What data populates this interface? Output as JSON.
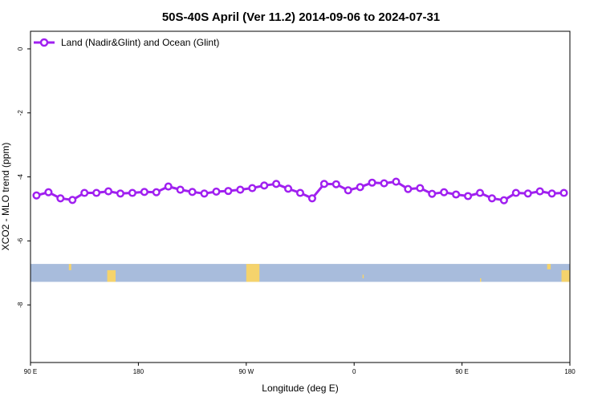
{
  "chart_data": {
    "type": "line",
    "title": "50S-40S April (Ver 11.2)   2014-09-06 to 2024-07-31",
    "xlabel": "Longitude (deg E)",
    "ylabel": "XCO2 - MLO trend (ppm)",
    "x_ticks": [
      {
        "value": 90,
        "label": "90 E"
      },
      {
        "value": 180,
        "label": "180"
      },
      {
        "value": 270,
        "label": "90 W"
      },
      {
        "value": 360,
        "label": "0"
      },
      {
        "value": 450,
        "label": "90 E"
      },
      {
        "value": 540,
        "label": "180"
      }
    ],
    "y_ticks": [
      {
        "value": 0,
        "label": "0"
      },
      {
        "value": -2,
        "label": "-2"
      },
      {
        "value": -4,
        "label": "-4"
      },
      {
        "value": -6,
        "label": "-6"
      },
      {
        "value": -8,
        "label": "-8"
      }
    ],
    "xlim": [
      90,
      540
    ],
    "ylim": [
      -9.8,
      0.55
    ],
    "legend_position": "top-left",
    "land_band_y": [
      -6.72,
      -7.28
    ],
    "colors": {
      "series": "#a020f0",
      "ocean_band": "#a8bcdc",
      "land": "#f5d36c"
    },
    "series": [
      {
        "name": "Land (Nadir&Glint) and Ocean (Glint)",
        "x": [
          95,
          105,
          115,
          125,
          135,
          145,
          155,
          165,
          175,
          185,
          195,
          205,
          215,
          225,
          235,
          245,
          255,
          265,
          275,
          285,
          295,
          305,
          315,
          325,
          335,
          345,
          355,
          365,
          375,
          385,
          395,
          405,
          415,
          425,
          435,
          445,
          455,
          465,
          475,
          485,
          495,
          505,
          515,
          525,
          535
        ],
        "y": [
          -4.58,
          -4.48,
          -4.67,
          -4.72,
          -4.5,
          -4.5,
          -4.45,
          -4.52,
          -4.5,
          -4.47,
          -4.48,
          -4.3,
          -4.4,
          -4.47,
          -4.52,
          -4.46,
          -4.44,
          -4.4,
          -4.35,
          -4.27,
          -4.22,
          -4.37,
          -4.5,
          -4.67,
          -4.22,
          -4.23,
          -4.42,
          -4.32,
          -4.18,
          -4.2,
          -4.15,
          -4.38,
          -4.35,
          -4.53,
          -4.48,
          -4.55,
          -4.6,
          -4.5,
          -4.67,
          -4.73,
          -4.5,
          -4.52,
          -4.45,
          -4.52,
          -4.5
        ]
      }
    ]
  }
}
